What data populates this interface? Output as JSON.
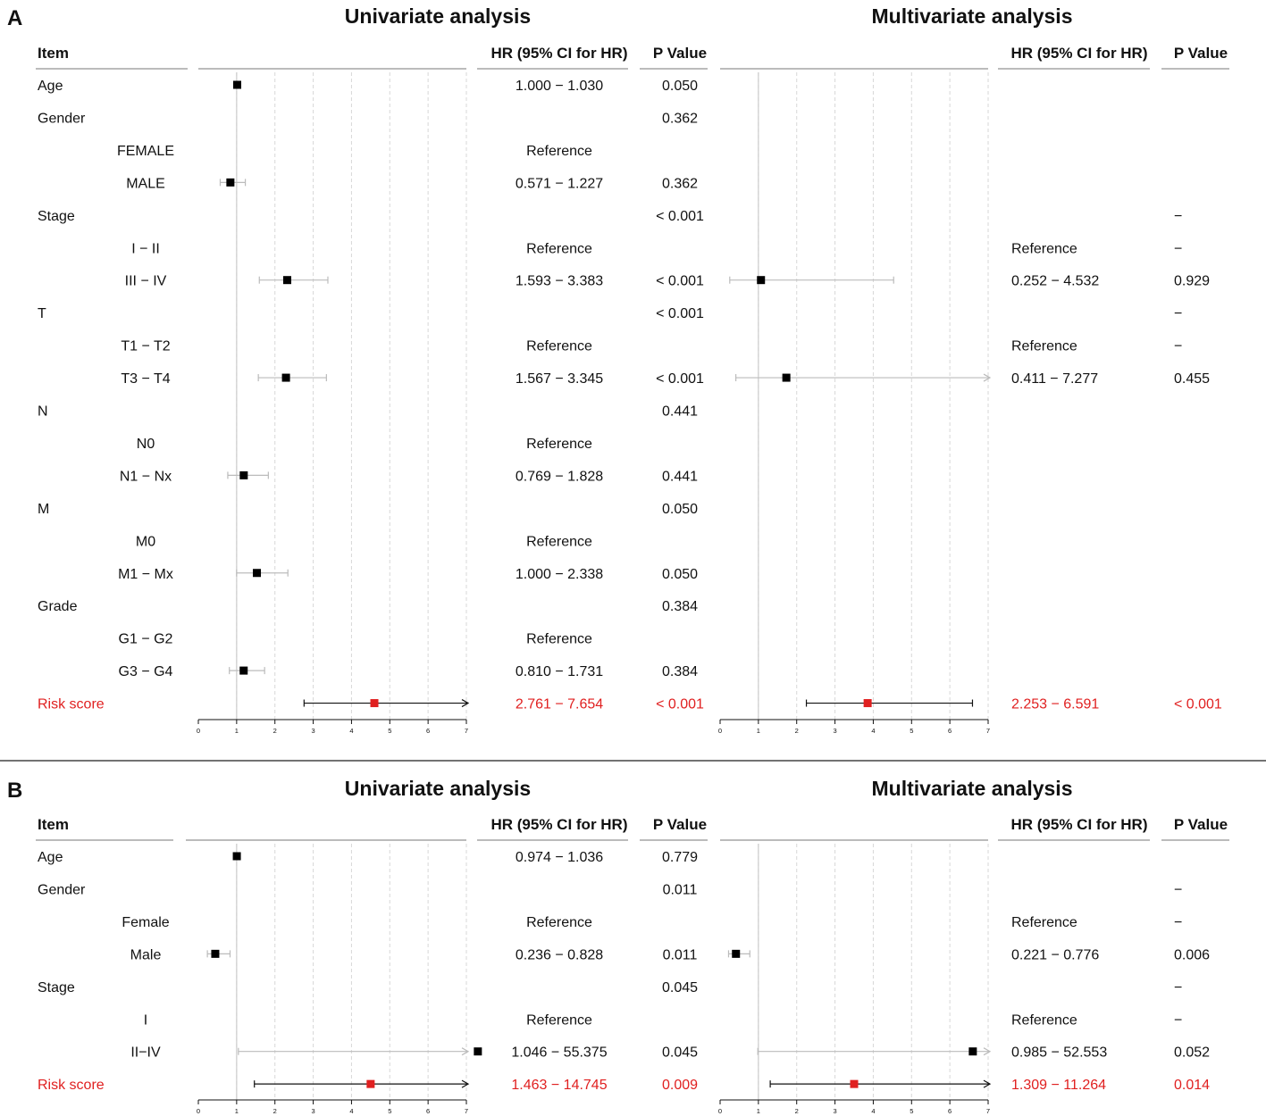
{
  "colors": {
    "text": "#111111",
    "highlight": "#e02020",
    "ci_line": "#bbbbbb",
    "ref_line": "#cccccc",
    "grid": "#d7d7d7",
    "axis": "#111111"
  },
  "chart_data": [
    {
      "type": "forest",
      "panel": "A",
      "xlim": [
        0,
        7
      ],
      "ticks": [
        0,
        1,
        2,
        3,
        4,
        5,
        6,
        7
      ],
      "reference_line": 1,
      "headers": {
        "item": "Item",
        "hr": "HR (95% CI for HR)",
        "p": "P Value"
      },
      "univariate": {
        "title": "Univariate analysis",
        "rows": [
          {
            "label": "Age",
            "indent": false,
            "hr": 1.015,
            "lo": 1.0,
            "hi": 1.03,
            "ci": "1.000 − 1.030",
            "p": "0.050",
            "highlight": false
          },
          {
            "label": "Gender",
            "indent": false,
            "hr": null,
            "ci": "",
            "p": "0.362",
            "highlight": false
          },
          {
            "label": "FEMALE",
            "indent": true,
            "hr": null,
            "ci": "Reference",
            "p": "",
            "highlight": false
          },
          {
            "label": "MALE",
            "indent": true,
            "hr": 0.837,
            "lo": 0.571,
            "hi": 1.227,
            "ci": "0.571 − 1.227",
            "p": "0.362",
            "highlight": false
          },
          {
            "label": "Stage",
            "indent": false,
            "hr": null,
            "ci": "",
            "p": "< 0.001",
            "highlight": false
          },
          {
            "label": "I − II",
            "indent": true,
            "hr": null,
            "ci": "Reference",
            "p": "",
            "highlight": false
          },
          {
            "label": "III − IV",
            "indent": true,
            "hr": 2.321,
            "lo": 1.593,
            "hi": 3.383,
            "ci": "1.593 − 3.383",
            "p": "< 0.001",
            "highlight": false
          },
          {
            "label": "T",
            "indent": false,
            "hr": null,
            "ci": "",
            "p": "< 0.001",
            "highlight": false
          },
          {
            "label": "T1 − T2",
            "indent": true,
            "hr": null,
            "ci": "Reference",
            "p": "",
            "highlight": false
          },
          {
            "label": "T3 − T4",
            "indent": true,
            "hr": 2.289,
            "lo": 1.567,
            "hi": 3.345,
            "ci": "1.567 − 3.345",
            "p": "< 0.001",
            "highlight": false
          },
          {
            "label": "N",
            "indent": false,
            "hr": null,
            "ci": "",
            "p": "0.441",
            "highlight": false
          },
          {
            "label": "N0",
            "indent": true,
            "hr": null,
            "ci": "Reference",
            "p": "",
            "highlight": false
          },
          {
            "label": "N1 − Nx",
            "indent": true,
            "hr": 1.186,
            "lo": 0.769,
            "hi": 1.828,
            "ci": "0.769 − 1.828",
            "p": "0.441",
            "highlight": false
          },
          {
            "label": "M",
            "indent": false,
            "hr": null,
            "ci": "",
            "p": "0.050",
            "highlight": false
          },
          {
            "label": "M0",
            "indent": true,
            "hr": null,
            "ci": "Reference",
            "p": "",
            "highlight": false
          },
          {
            "label": "M1 − Mx",
            "indent": true,
            "hr": 1.529,
            "lo": 1.0,
            "hi": 2.338,
            "ci": "1.000 − 2.338",
            "p": "0.050",
            "highlight": false
          },
          {
            "label": "Grade",
            "indent": false,
            "hr": null,
            "ci": "",
            "p": "0.384",
            "highlight": false
          },
          {
            "label": "G1 − G2",
            "indent": true,
            "hr": null,
            "ci": "Reference",
            "p": "",
            "highlight": false
          },
          {
            "label": "G3 − G4",
            "indent": true,
            "hr": 1.184,
            "lo": 0.81,
            "hi": 1.731,
            "ci": "0.810 − 1.731",
            "p": "0.384",
            "highlight": false
          },
          {
            "label": "Risk score",
            "indent": false,
            "hr": 4.597,
            "lo": 2.761,
            "hi": 7.654,
            "ci": "2.761 − 7.654",
            "p": "< 0.001",
            "highlight": true
          }
        ]
      },
      "multivariate": {
        "title": "Multivariate analysis",
        "rows": [
          {
            "hr": null,
            "ci": "",
            "p": ""
          },
          {
            "hr": null,
            "ci": "",
            "p": ""
          },
          {
            "hr": null,
            "ci": "",
            "p": ""
          },
          {
            "hr": null,
            "ci": "",
            "p": ""
          },
          {
            "hr": null,
            "ci": "",
            "p": "−"
          },
          {
            "hr": null,
            "ci": "Reference",
            "p": "−"
          },
          {
            "hr": 1.067,
            "lo": 0.252,
            "hi": 4.532,
            "ci": "0.252 − 4.532",
            "p": "0.929"
          },
          {
            "hr": null,
            "ci": "",
            "p": "−"
          },
          {
            "hr": null,
            "ci": "Reference",
            "p": "−"
          },
          {
            "hr": 1.73,
            "lo": 0.411,
            "hi": 7.277,
            "ci": "0.411 − 7.277",
            "p": "0.455"
          },
          {
            "hr": null,
            "ci": "",
            "p": ""
          },
          {
            "hr": null,
            "ci": "",
            "p": ""
          },
          {
            "hr": null,
            "ci": "",
            "p": ""
          },
          {
            "hr": null,
            "ci": "",
            "p": ""
          },
          {
            "hr": null,
            "ci": "",
            "p": ""
          },
          {
            "hr": null,
            "ci": "",
            "p": ""
          },
          {
            "hr": null,
            "ci": "",
            "p": ""
          },
          {
            "hr": null,
            "ci": "",
            "p": ""
          },
          {
            "hr": null,
            "ci": "",
            "p": ""
          },
          {
            "hr": 3.853,
            "lo": 2.253,
            "hi": 6.591,
            "ci": "2.253 − 6.591",
            "p": "< 0.001",
            "highlight": true
          }
        ]
      }
    },
    {
      "type": "forest",
      "panel": "B",
      "xlim": [
        0,
        7
      ],
      "ticks": [
        0,
        1,
        2,
        3,
        4,
        5,
        6,
        7
      ],
      "reference_line": 1,
      "headers": {
        "item": "Item",
        "hr": "HR (95% CI for HR)",
        "p": "P Value"
      },
      "univariate": {
        "title": "Univariate analysis",
        "rows": [
          {
            "label": "Age",
            "indent": false,
            "hr": 1.005,
            "lo": 0.974,
            "hi": 1.036,
            "ci": "0.974 − 1.036",
            "p": "0.779",
            "highlight": false
          },
          {
            "label": "Gender",
            "indent": false,
            "hr": null,
            "ci": "",
            "p": "0.011",
            "highlight": false
          },
          {
            "label": "Female",
            "indent": true,
            "hr": null,
            "ci": "Reference",
            "p": "",
            "highlight": false
          },
          {
            "label": "Male",
            "indent": true,
            "hr": 0.442,
            "lo": 0.236,
            "hi": 0.828,
            "ci": "0.236 − 0.828",
            "p": "0.011",
            "highlight": false
          },
          {
            "label": "Stage",
            "indent": false,
            "hr": null,
            "ci": "",
            "p": "0.045",
            "highlight": false
          },
          {
            "label": "I",
            "indent": true,
            "hr": null,
            "ci": "Reference",
            "p": "",
            "highlight": false
          },
          {
            "label": "II−IV",
            "indent": true,
            "hr": 7.3,
            "lo": 1.046,
            "hi": 55.375,
            "ci": "1.046 − 55.375",
            "p": "0.045",
            "highlight": false
          },
          {
            "label": "Risk score",
            "indent": false,
            "hr": 4.5,
            "lo": 1.463,
            "hi": 14.745,
            "ci": "1.463 − 14.745",
            "p": "0.009",
            "highlight": true
          }
        ]
      },
      "multivariate": {
        "title": "Multivariate analysis",
        "rows": [
          {
            "hr": null,
            "ci": "",
            "p": ""
          },
          {
            "hr": null,
            "ci": "",
            "p": "−"
          },
          {
            "hr": null,
            "ci": "Reference",
            "p": "−"
          },
          {
            "hr": 0.414,
            "lo": 0.221,
            "hi": 0.776,
            "ci": "0.221 − 0.776",
            "p": "0.006"
          },
          {
            "hr": null,
            "ci": "",
            "p": "−"
          },
          {
            "hr": null,
            "ci": "Reference",
            "p": "−"
          },
          {
            "hr": 6.6,
            "lo": 0.985,
            "hi": 52.553,
            "ci": "0.985 − 52.553",
            "p": "0.052"
          },
          {
            "hr": 3.5,
            "lo": 1.309,
            "hi": 11.264,
            "ci": "1.309 − 11.264",
            "p": "0.014",
            "highlight": true
          }
        ]
      }
    }
  ]
}
